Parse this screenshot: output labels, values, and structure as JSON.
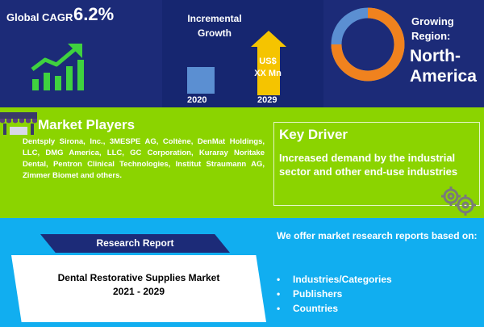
{
  "top": {
    "cagr": {
      "label": "Global CAGR",
      "value": "6.2%"
    },
    "incremental": {
      "title_line1": "Incremental",
      "title_line2": "Growth",
      "arrow_line1": "US$",
      "arrow_line2": "XX Mn",
      "year_start": "2020",
      "year_end": "2029"
    },
    "region": {
      "label_line1": "Growing",
      "label_line2": "Region:",
      "value_line1": "North-",
      "value_line2": "America"
    }
  },
  "middle": {
    "market_players": {
      "title": "Market Players",
      "body": "Dentsply Sirona, Inc., 3MESPE AG, Coltène, DenMat Holdings, LLC, DMG America, LLC, GC Corporation, Kuraray Noritake Dental, Pentron Clinical Technologies, Institut Straumann AG, Zimmer Biomet and others."
    },
    "key_driver": {
      "title": "Key Driver",
      "body": "Increased demand by the industrial sector and other end-use industries"
    }
  },
  "bottom": {
    "banner": "Research Report",
    "report_title_line1": "Dental Restorative Supplies Market",
    "report_title_line2": "2021 - 2029",
    "offer": "We offer market research reports based on:",
    "bullet_char": "•",
    "offer_items": [
      "Industries/Categories",
      "Publishers",
      "Countries"
    ]
  },
  "colors": {
    "navy": "#1c2b78",
    "lime": "#8bd400",
    "sky": "#11aef0",
    "growth_green": "#3fd23f",
    "arrow_yellow": "#f5c400",
    "donut_orange": "#f0821e",
    "donut_blue": "#5b8fd2"
  },
  "icons": [
    "growth-chart-icon",
    "up-arrow-icon",
    "donut-chart-icon",
    "market-stall-icon",
    "gears-icon"
  ]
}
